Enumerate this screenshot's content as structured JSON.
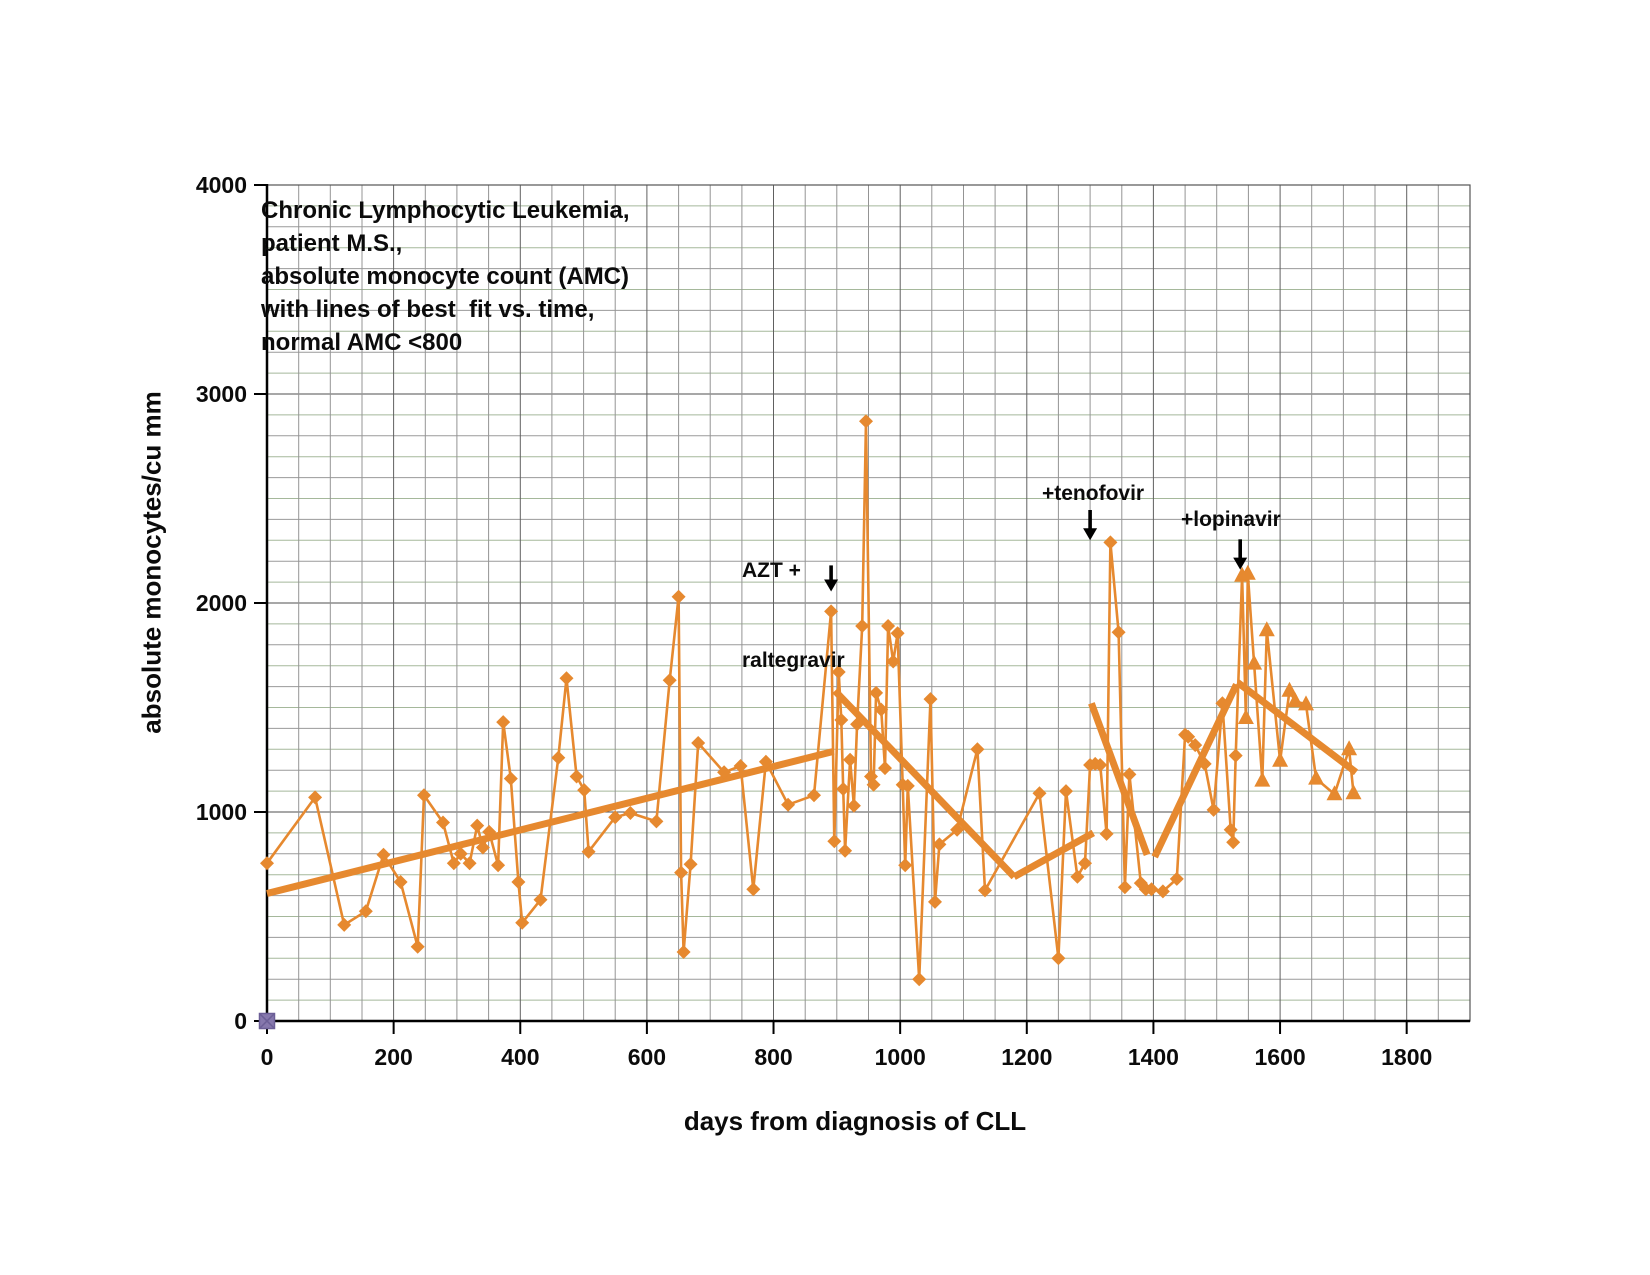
{
  "title_block": {
    "lines": [
      "Chronic Lymphocytic Leukemia,",
      "patient M.S.,",
      "absolute monocyte count (AMC)",
      "with lines of best  fit vs. time,",
      "normal AMC <800"
    ]
  },
  "chart_data": {
    "type": "line",
    "title": "Chronic Lymphocytic Leukemia, patient M.S., absolute monocyte count (AMC) with lines of best fit vs. time, normal AMC <800",
    "xlabel": "days from diagnosis of CLL",
    "ylabel": "absolute monocytes/cu mm",
    "xlim": [
      0,
      1900
    ],
    "ylim": [
      0,
      4000
    ],
    "x_ticks": [
      0,
      200,
      400,
      600,
      800,
      1000,
      1200,
      1400,
      1600,
      1800
    ],
    "y_ticks": [
      0,
      1000,
      2000,
      3000,
      4000
    ],
    "grid": true,
    "legend": "none",
    "series": [
      {
        "name": "AMC (diamond markers)",
        "marker": "diamond",
        "points": [
          [
            0,
            755
          ],
          [
            76,
            1070
          ],
          [
            122,
            460
          ],
          [
            156,
            525
          ],
          [
            184,
            795
          ],
          [
            211,
            665
          ],
          [
            238,
            355
          ],
          [
            248,
            1080
          ],
          [
            278,
            950
          ],
          [
            295,
            755
          ],
          [
            306,
            800
          ],
          [
            320,
            755
          ],
          [
            332,
            935
          ],
          [
            341,
            830
          ],
          [
            351,
            905
          ],
          [
            365,
            745
          ],
          [
            373,
            1430
          ],
          [
            385,
            1160
          ],
          [
            397,
            665
          ],
          [
            403,
            470
          ],
          [
            432,
            580
          ],
          [
            460,
            1260
          ],
          [
            473,
            1640
          ],
          [
            489,
            1170
          ],
          [
            501,
            1105
          ],
          [
            508,
            810
          ],
          [
            550,
            975
          ],
          [
            574,
            995
          ],
          [
            615,
            955
          ],
          [
            636,
            1630
          ],
          [
            650,
            2030
          ],
          [
            654,
            710
          ],
          [
            658,
            330
          ],
          [
            669,
            750
          ],
          [
            681,
            1330
          ],
          [
            722,
            1190
          ],
          [
            748,
            1220
          ],
          [
            768,
            630
          ],
          [
            788,
            1240
          ],
          [
            823,
            1035
          ],
          [
            864,
            1080
          ],
          [
            891,
            1960
          ],
          [
            896,
            860
          ],
          [
            903,
            1670
          ],
          [
            907,
            1440
          ],
          [
            910,
            1110
          ],
          [
            913,
            815
          ],
          [
            921,
            1250
          ],
          [
            927,
            1030
          ],
          [
            932,
            1420
          ],
          [
            940,
            1890
          ],
          [
            946,
            2870
          ],
          [
            954,
            1170
          ],
          [
            958,
            1130
          ],
          [
            962,
            1570
          ],
          [
            970,
            1490
          ],
          [
            976,
            1210
          ],
          [
            981,
            1890
          ],
          [
            989,
            1720
          ],
          [
            996,
            1855
          ],
          [
            1004,
            1130
          ],
          [
            1008,
            745
          ],
          [
            1012,
            1125
          ],
          [
            1030,
            200
          ],
          [
            1048,
            1540
          ],
          [
            1055,
            570
          ],
          [
            1062,
            845
          ],
          [
            1090,
            915
          ],
          [
            1122,
            1300
          ],
          [
            1134,
            625
          ],
          [
            1220,
            1090
          ],
          [
            1250,
            300
          ],
          [
            1262,
            1100
          ],
          [
            1280,
            690
          ],
          [
            1292,
            755
          ],
          [
            1300,
            1225
          ],
          [
            1308,
            1230
          ],
          [
            1316,
            1225
          ],
          [
            1326,
            895
          ],
          [
            1332,
            2290
          ],
          [
            1345,
            1860
          ],
          [
            1355,
            640
          ],
          [
            1362,
            1180
          ],
          [
            1380,
            660
          ],
          [
            1388,
            630
          ],
          [
            1397,
            630
          ],
          [
            1415,
            620
          ],
          [
            1437,
            680
          ],
          [
            1450,
            1370
          ],
          [
            1455,
            1360
          ],
          [
            1466,
            1320
          ],
          [
            1481,
            1230
          ],
          [
            1495,
            1010
          ],
          [
            1509,
            1520
          ],
          [
            1522,
            915
          ],
          [
            1526,
            855
          ],
          [
            1530,
            1270
          ]
        ]
      },
      {
        "name": "AMC after lopinavir (triangle markers)",
        "marker": "triangle",
        "points": [
          [
            1540,
            2130
          ],
          [
            1546,
            1450
          ],
          [
            1549,
            2140
          ],
          [
            1559,
            1710
          ],
          [
            1572,
            1150
          ],
          [
            1579,
            1870
          ],
          [
            1600,
            1245
          ],
          [
            1615,
            1580
          ],
          [
            1624,
            1530
          ],
          [
            1641,
            1515
          ],
          [
            1657,
            1160
          ],
          [
            1686,
            1085
          ],
          [
            1709,
            1300
          ],
          [
            1716,
            1090
          ]
        ]
      },
      {
        "name": "origin marker",
        "marker": "square",
        "points": [
          [
            0,
            0
          ]
        ]
      }
    ],
    "trend_lines": [
      {
        "name": "best fit 1",
        "from": [
          0,
          610
        ],
        "to": [
          895,
          1290
        ]
      },
      {
        "name": "best fit 2",
        "from": [
          897,
          1580
        ],
        "to": [
          1180,
          690
        ]
      },
      {
        "name": "best fit 3",
        "from": [
          1180,
          690
        ],
        "to": [
          1305,
          900
        ]
      },
      {
        "name": "best fit 4",
        "from": [
          1302,
          1520
        ],
        "to": [
          1390,
          795
        ]
      },
      {
        "name": "best fit 5",
        "from": [
          1402,
          785
        ],
        "to": [
          1531,
          1610
        ]
      },
      {
        "name": "best fit 6",
        "from": [
          1533,
          1620
        ],
        "to": [
          1720,
          1190
        ]
      }
    ],
    "annotations": [
      {
        "id": "azt",
        "lines": [
          "AZT +",
          "raltegravir"
        ],
        "arrow": {
          "day": 891,
          "from": 2180,
          "to": 2055
        }
      },
      {
        "id": "tenofovir",
        "lines": [
          "+tenofovir"
        ],
        "arrow": {
          "day": 1300,
          "from": 2445,
          "to": 2300
        }
      },
      {
        "id": "lopinavir",
        "lines": [
          "+lopinavir"
        ],
        "arrow": {
          "day": 1537,
          "from": 2305,
          "to": 2160
        }
      }
    ],
    "colors": {
      "accent": "#E6892F",
      "purple_fill": "#8678AD",
      "purple_edge": "#6C5F97",
      "grid_green": "#A5B89B",
      "grid_gray": "#9A9A9A",
      "grid_dark": "#4F4F4F",
      "grid_v": "#949494",
      "grid_v_dark": "#606060",
      "axis": "#000000",
      "text": "#0B0B0B"
    }
  }
}
